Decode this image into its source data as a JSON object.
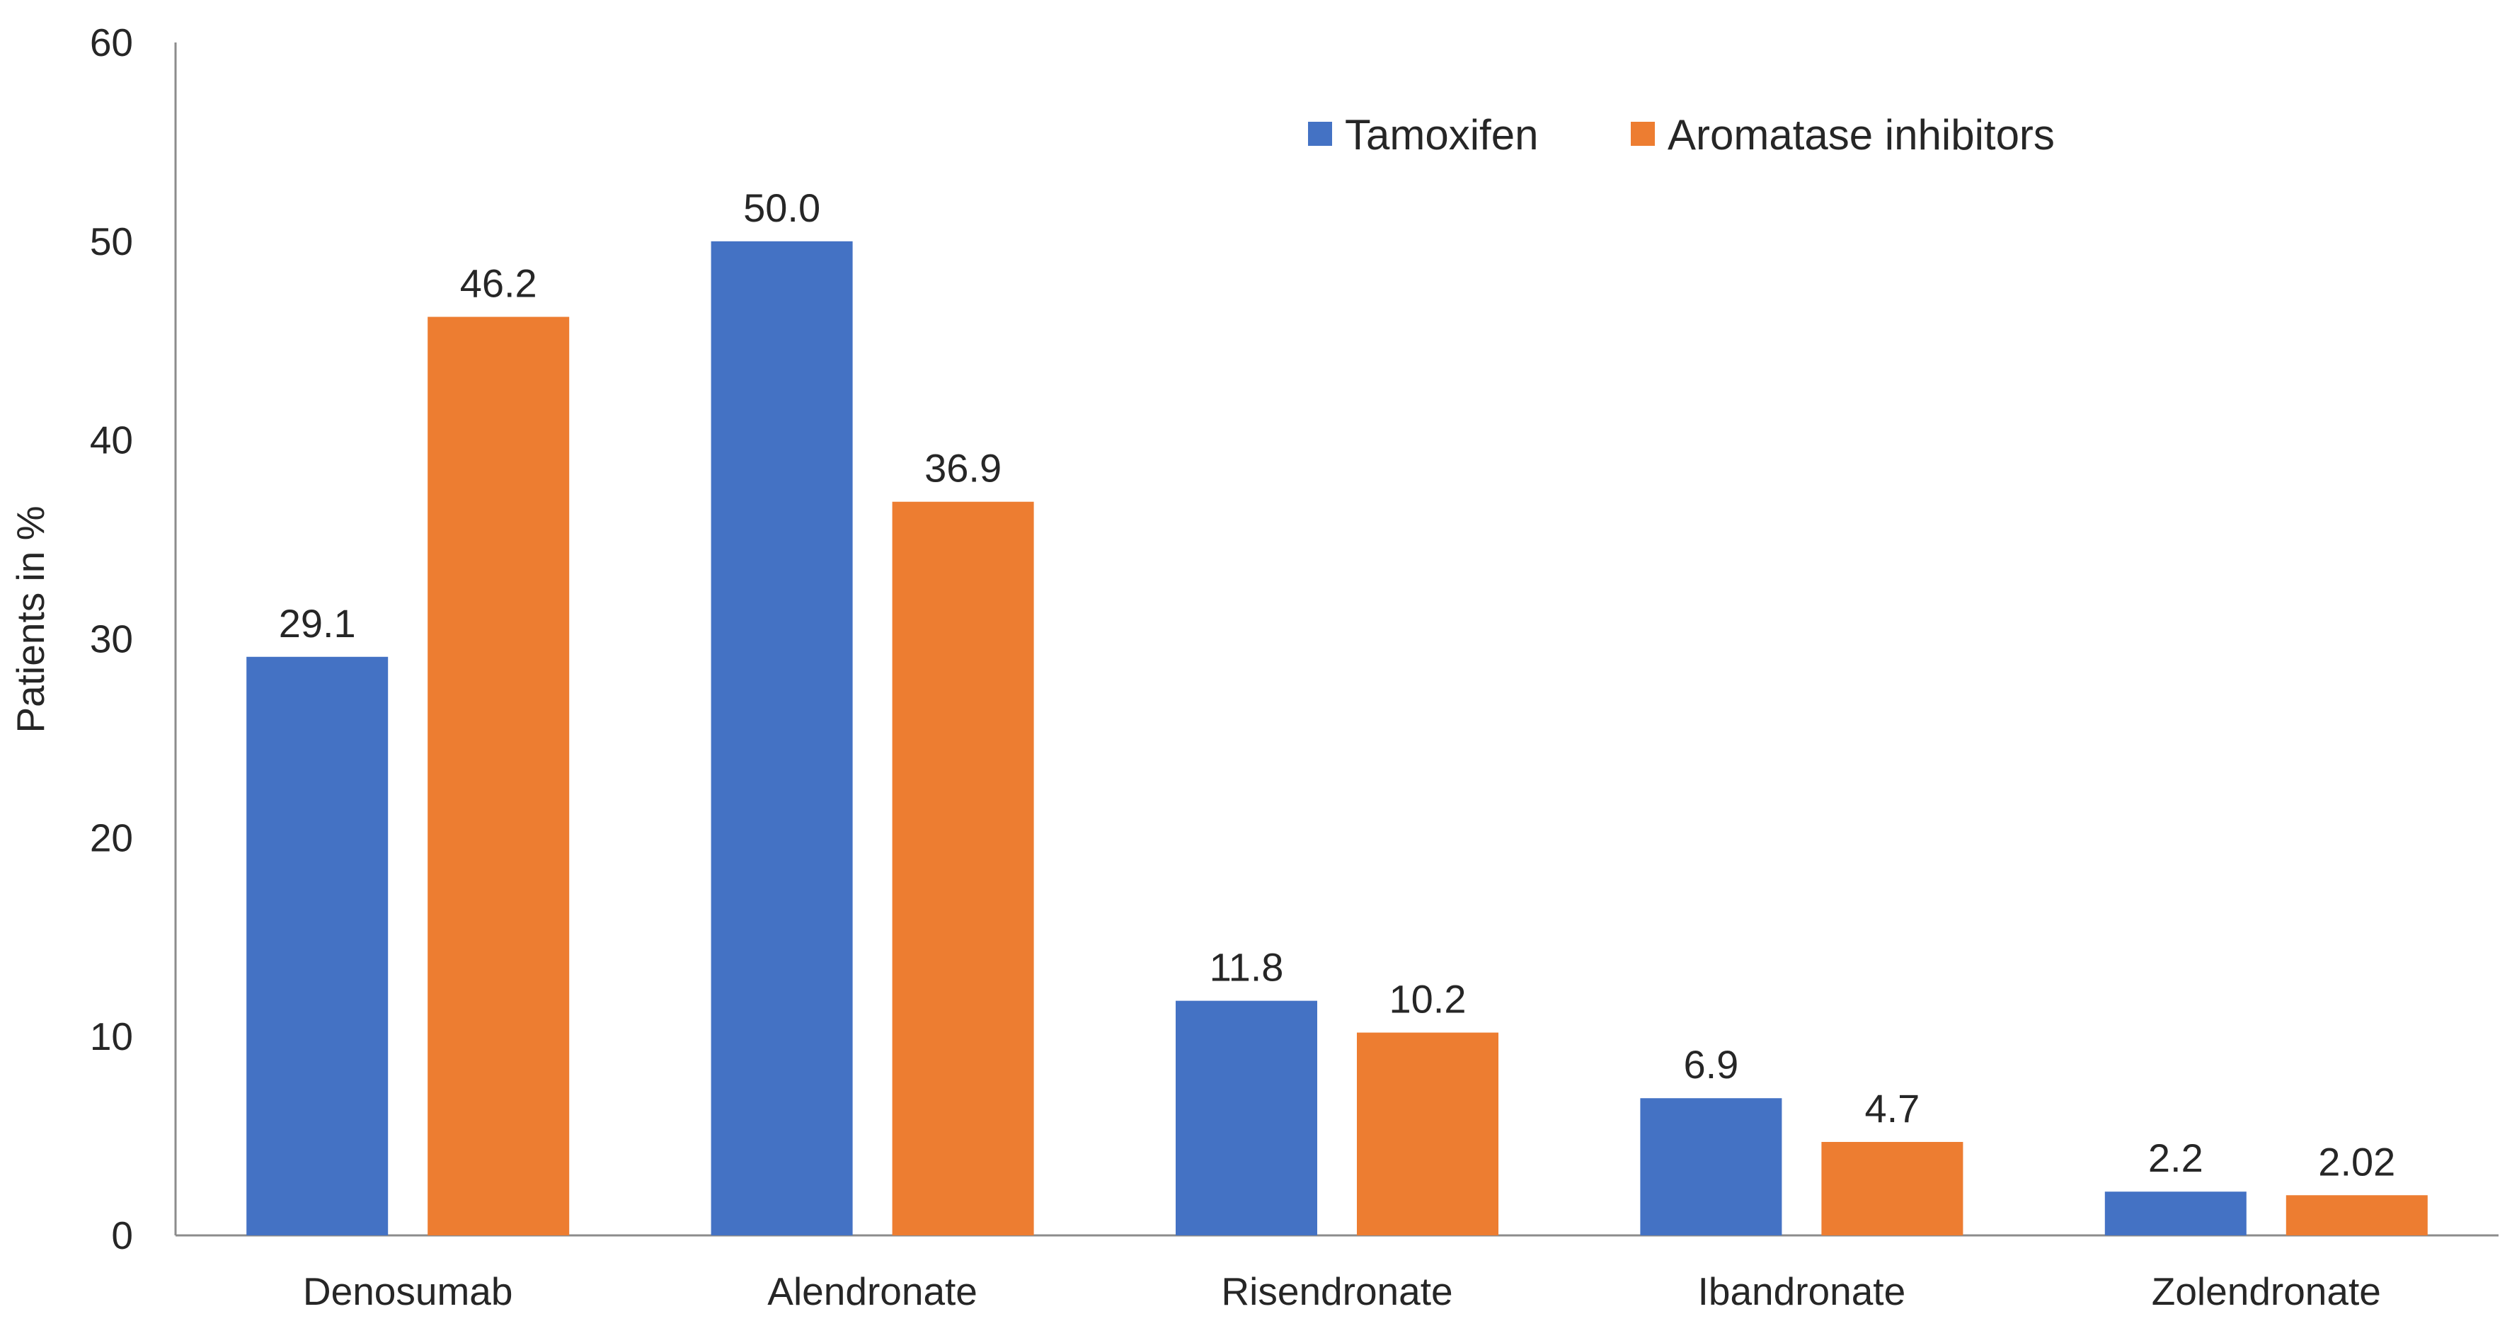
{
  "chart_data": {
    "type": "bar",
    "title": "",
    "xlabel": "",
    "ylabel": "Patients in %",
    "ylim": [
      0,
      60
    ],
    "yticks": [
      0,
      10,
      20,
      30,
      40,
      50,
      60
    ],
    "grid": false,
    "legend_position": "top-right",
    "categories": [
      "Denosumab",
      "Alendronate",
      "Risendronate",
      "Ibandronate",
      "Zolendronate"
    ],
    "series": [
      {
        "name": "Tamoxifen",
        "color": "#4472C4",
        "values": [
          29.1,
          50.0,
          11.8,
          6.9,
          2.2
        ],
        "labels": [
          "29.1",
          "50.0",
          "11.8",
          "6.9",
          "2.2"
        ]
      },
      {
        "name": "Aromatase inhibitors",
        "color": "#ED7D31",
        "values": [
          46.2,
          36.9,
          10.2,
          4.7,
          2.02
        ],
        "labels": [
          "46.2",
          "36.9",
          "10.2",
          "4.7",
          "2.02"
        ]
      }
    ]
  }
}
